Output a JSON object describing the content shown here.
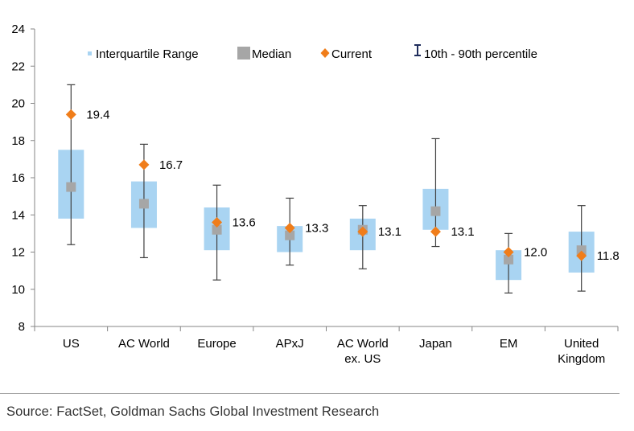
{
  "chart_data": {
    "type": "box",
    "categories": [
      [
        "US"
      ],
      [
        "AC World"
      ],
      [
        "Europe"
      ],
      [
        "APxJ"
      ],
      [
        "AC World",
        "ex. US"
      ],
      [
        "Japan"
      ],
      [
        "EM"
      ],
      [
        "United",
        "Kingdom"
      ]
    ],
    "p10": [
      12.4,
      11.7,
      10.5,
      11.3,
      11.1,
      12.3,
      9.8,
      9.9
    ],
    "q1": [
      13.8,
      13.3,
      12.1,
      12.0,
      12.1,
      13.2,
      10.5,
      10.9
    ],
    "median": [
      15.5,
      14.6,
      13.2,
      12.9,
      13.2,
      14.2,
      11.6,
      12.1
    ],
    "q3": [
      17.5,
      15.8,
      14.4,
      13.4,
      13.8,
      15.4,
      12.1,
      13.1
    ],
    "p90": [
      21.0,
      17.8,
      15.6,
      14.9,
      14.5,
      18.1,
      13.0,
      14.5
    ],
    "current": [
      19.4,
      16.7,
      13.6,
      13.3,
      13.1,
      13.1,
      12.0,
      11.8
    ],
    "current_labels": [
      "19.4",
      "16.7",
      "13.6",
      "13.3",
      "13.1",
      "13.1",
      "12.0",
      "11.8"
    ],
    "ylim": [
      8,
      24
    ],
    "yticks": [
      "8",
      "10",
      "12",
      "14",
      "16",
      "18",
      "20",
      "22",
      "24"
    ],
    "legend": {
      "position": "top",
      "items": [
        "Interquartile Range",
        "Median",
        "Current",
        "10th - 90th percentile"
      ]
    },
    "colors": {
      "iqr": "#a9d4f2",
      "median": "#a6a6a6",
      "current": "#f07d1a",
      "whisker": "#404040",
      "legend_whisker": "#1f2d5c",
      "axis": "#868686"
    },
    "title": "",
    "xlabel": "",
    "ylabel": ""
  },
  "source": "Source: FactSet, Goldman Sachs Global Investment Research"
}
